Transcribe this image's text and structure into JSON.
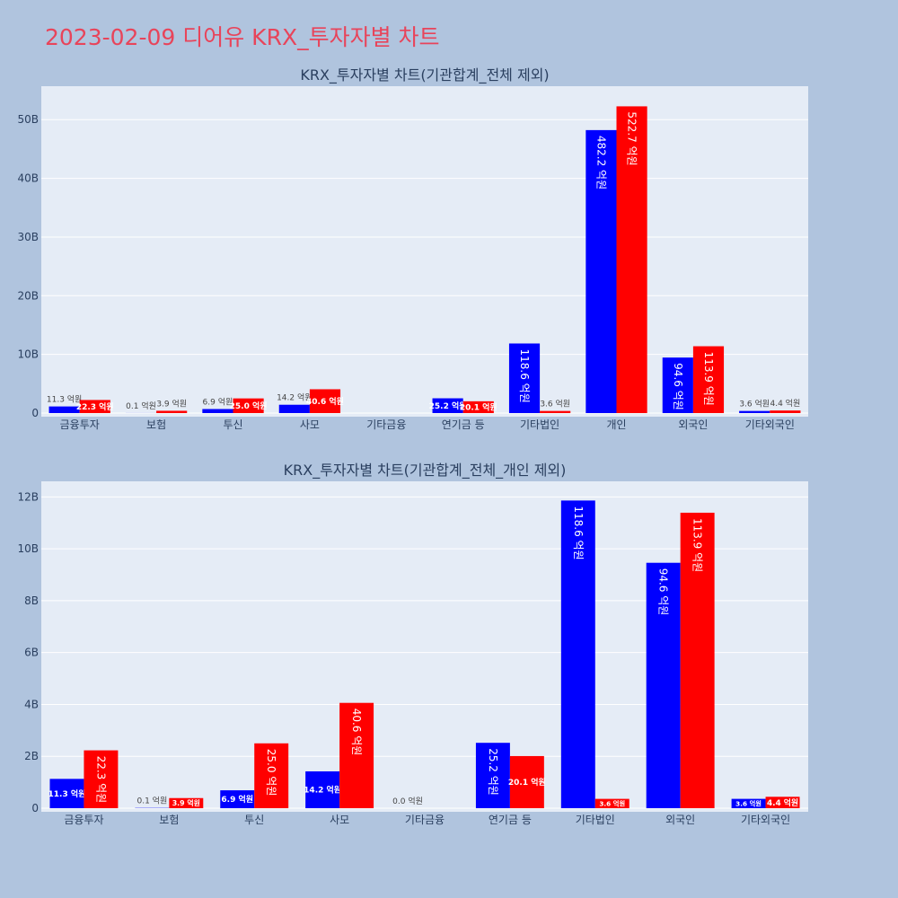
{
  "page_title": "2023-02-09 디어유 KRX_투자자별 차트",
  "colors": {
    "background": "#B0C4DE",
    "plot_bg": "#E5ECF6",
    "buy": "#0000FF",
    "sell": "#FF0000",
    "title": "#E8445A"
  },
  "chart_data": [
    {
      "type": "bar",
      "title": "KRX_투자자별 차트(기관합계_전체 제외)",
      "categories": [
        "금융투자",
        "보험",
        "투신",
        "사모",
        "기타금융",
        "연기금 등",
        "기타법인",
        "개인",
        "외국인",
        "기타외국인"
      ],
      "series": [
        {
          "color": "#0000FF",
          "values": [
            1.13,
            0.01,
            0.69,
            1.42,
            0,
            2.52,
            11.86,
            48.22,
            9.46,
            0.36
          ],
          "labels": [
            "11.3 억원",
            "0.1 억원",
            "6.9 억원",
            "14.2 억원",
            "",
            "25.2 억원",
            "118.6 억원",
            "482.2 억원",
            "94.6 억원",
            "3.6 억원"
          ]
        },
        {
          "color": "#FF0000",
          "values": [
            2.23,
            0.39,
            2.5,
            4.06,
            0,
            2.01,
            0.36,
            52.27,
            11.39,
            0.44
          ],
          "labels": [
            "22.3 억원",
            "3.9 억원",
            "25.0 억원",
            "40.6 억원",
            "",
            "20.1 억원",
            "3.6 억원",
            "522.7 억원",
            "113.9 억원",
            "4.4 억원"
          ]
        }
      ],
      "yticks": [
        "0",
        "10B",
        "20B",
        "30B",
        "40B",
        "50B"
      ],
      "ytick_values": [
        0,
        10,
        20,
        30,
        40,
        50
      ],
      "ylim": [
        0,
        55.7
      ],
      "grid": true
    },
    {
      "type": "bar",
      "title": "KRX_투자자별 차트(기관합계_전체_개인 제외)",
      "categories": [
        "금융투자",
        "보험",
        "투신",
        "사모",
        "기타금융",
        "연기금 등",
        "기타법인",
        "외국인",
        "기타외국인"
      ],
      "series": [
        {
          "color": "#0000FF",
          "values": [
            1.13,
            0.01,
            0.69,
            1.42,
            0,
            2.52,
            11.86,
            9.46,
            0.36
          ],
          "labels": [
            "11.3 억원",
            "0.1 억원",
            "6.9 억원",
            "14.2 억원",
            "0.0 억원",
            "25.2 억원",
            "118.6 억원",
            "94.6 억원",
            "3.6 억원"
          ]
        },
        {
          "color": "#FF0000",
          "values": [
            2.23,
            0.39,
            2.5,
            4.06,
            0,
            2.01,
            0.36,
            11.39,
            0.44
          ],
          "labels": [
            "22.3 억원",
            "3.9 억원",
            "25.0 억원",
            "40.6 억원",
            "",
            "20.1 억원",
            "3.6 억원",
            "113.9 억원",
            "4.4 억원"
          ]
        }
      ],
      "yticks": [
        "0",
        "2B",
        "4B",
        "6B",
        "8B",
        "10B",
        "12B"
      ],
      "ytick_values": [
        0,
        2,
        4,
        6,
        8,
        10,
        12
      ],
      "ylim": [
        0,
        12.6
      ],
      "grid": true
    }
  ]
}
